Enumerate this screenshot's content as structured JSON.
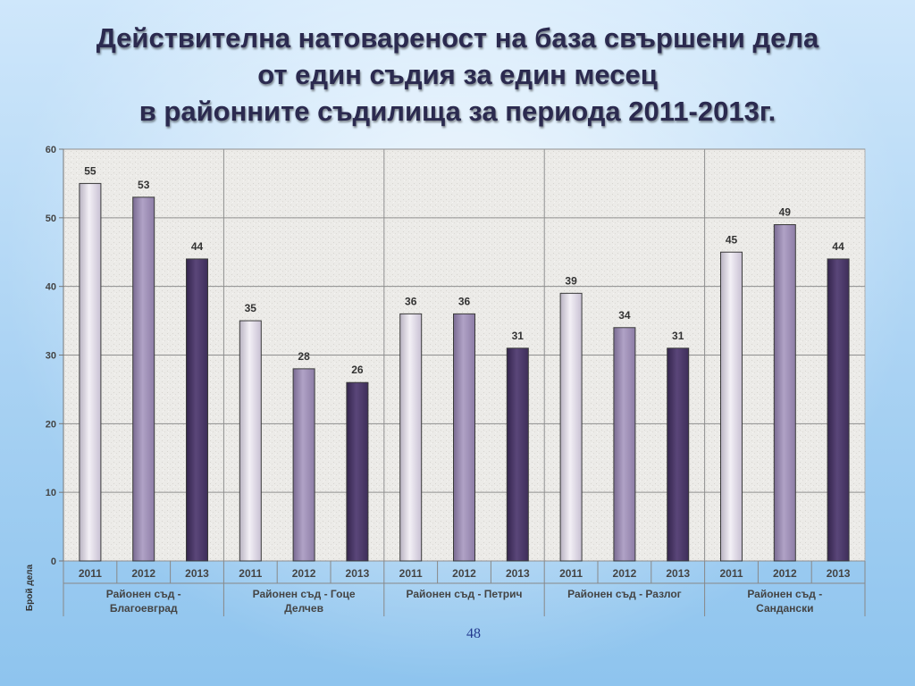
{
  "title": {
    "line1": "Действителна натовареност на база свършени дела",
    "line2": "от един съдия за един месец",
    "line3": "в районните съдилища за периода 2011-2013г."
  },
  "page_number": "48",
  "colors": {
    "bar_2011": "#e8e3ef",
    "bar_2012": "#9c8cb4",
    "bar_2013": "#4a3868",
    "grid": "#9a9a9a",
    "axis_text": "#444444"
  },
  "chart_data": {
    "type": "bar",
    "title": "",
    "xlabel": "",
    "ylabel": "Брой дела",
    "ylim": [
      0,
      60
    ],
    "yticks": [
      0,
      10,
      20,
      30,
      40,
      50,
      60
    ],
    "grid": true,
    "groups": [
      {
        "name": "Районен съд - Благоевград",
        "label_lines": [
          "Районен съд -",
          "Благоевград"
        ],
        "years": [
          "2011",
          "2012",
          "2013"
        ],
        "values": [
          55,
          53,
          44
        ]
      },
      {
        "name": "Районен съд - Гоце Делчев",
        "label_lines": [
          "Районен съд - Гоце",
          "Делчев"
        ],
        "years": [
          "2011",
          "2012",
          "2013"
        ],
        "values": [
          35,
          28,
          26
        ]
      },
      {
        "name": "Районен съд - Петрич",
        "label_lines": [
          "Районен съд - Петрич"
        ],
        "years": [
          "2011",
          "2012",
          "2013"
        ],
        "values": [
          36,
          36,
          31
        ]
      },
      {
        "name": "Районен съд - Разлог",
        "label_lines": [
          "Районен съд - Разлог"
        ],
        "years": [
          "2011",
          "2012",
          "2013"
        ],
        "values": [
          39,
          34,
          31
        ]
      },
      {
        "name": "Районен съд - Сандански",
        "label_lines": [
          "Районен съд -",
          "Сандански"
        ],
        "years": [
          "2011",
          "2012",
          "2013"
        ],
        "values": [
          45,
          49,
          44
        ]
      }
    ]
  }
}
